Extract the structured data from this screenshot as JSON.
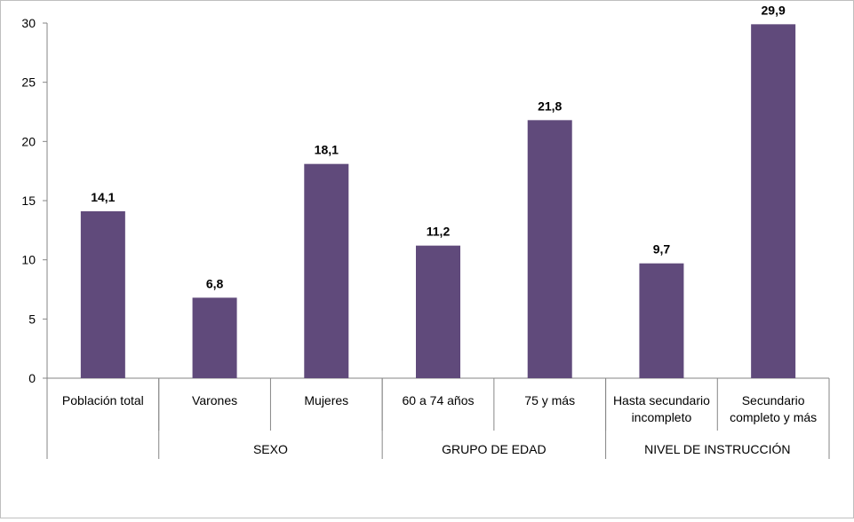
{
  "chart_data": {
    "type": "bar",
    "categories": [
      [
        "Población total"
      ],
      [
        "Varones"
      ],
      [
        "Mujeres"
      ],
      [
        "60 a 74 años"
      ],
      [
        "75 y más"
      ],
      [
        "Hasta secundario",
        "incompleto"
      ],
      [
        "Secundario",
        "completo y más"
      ]
    ],
    "values": [
      14.1,
      6.8,
      18.1,
      11.2,
      21.8,
      9.7,
      29.9
    ],
    "value_labels": [
      "14,1",
      "6,8",
      "18,1",
      "11,2",
      "21,8",
      "9,7",
      "29,9"
    ],
    "groups": [
      {
        "label": "",
        "start": 0,
        "end": 0
      },
      {
        "label": "SEXO",
        "start": 1,
        "end": 2
      },
      {
        "label": "GRUPO DE EDAD",
        "start": 3,
        "end": 4
      },
      {
        "label": "NIVEL DE INSTRUCCIÓN",
        "start": 5,
        "end": 6
      }
    ],
    "yticks": [
      "0",
      "5",
      "10",
      "15",
      "20",
      "25",
      "30"
    ],
    "ylim": [
      0,
      30
    ],
    "bar_color": "#604a7b",
    "grid": false,
    "title": "",
    "xlabel": "",
    "ylabel": ""
  }
}
